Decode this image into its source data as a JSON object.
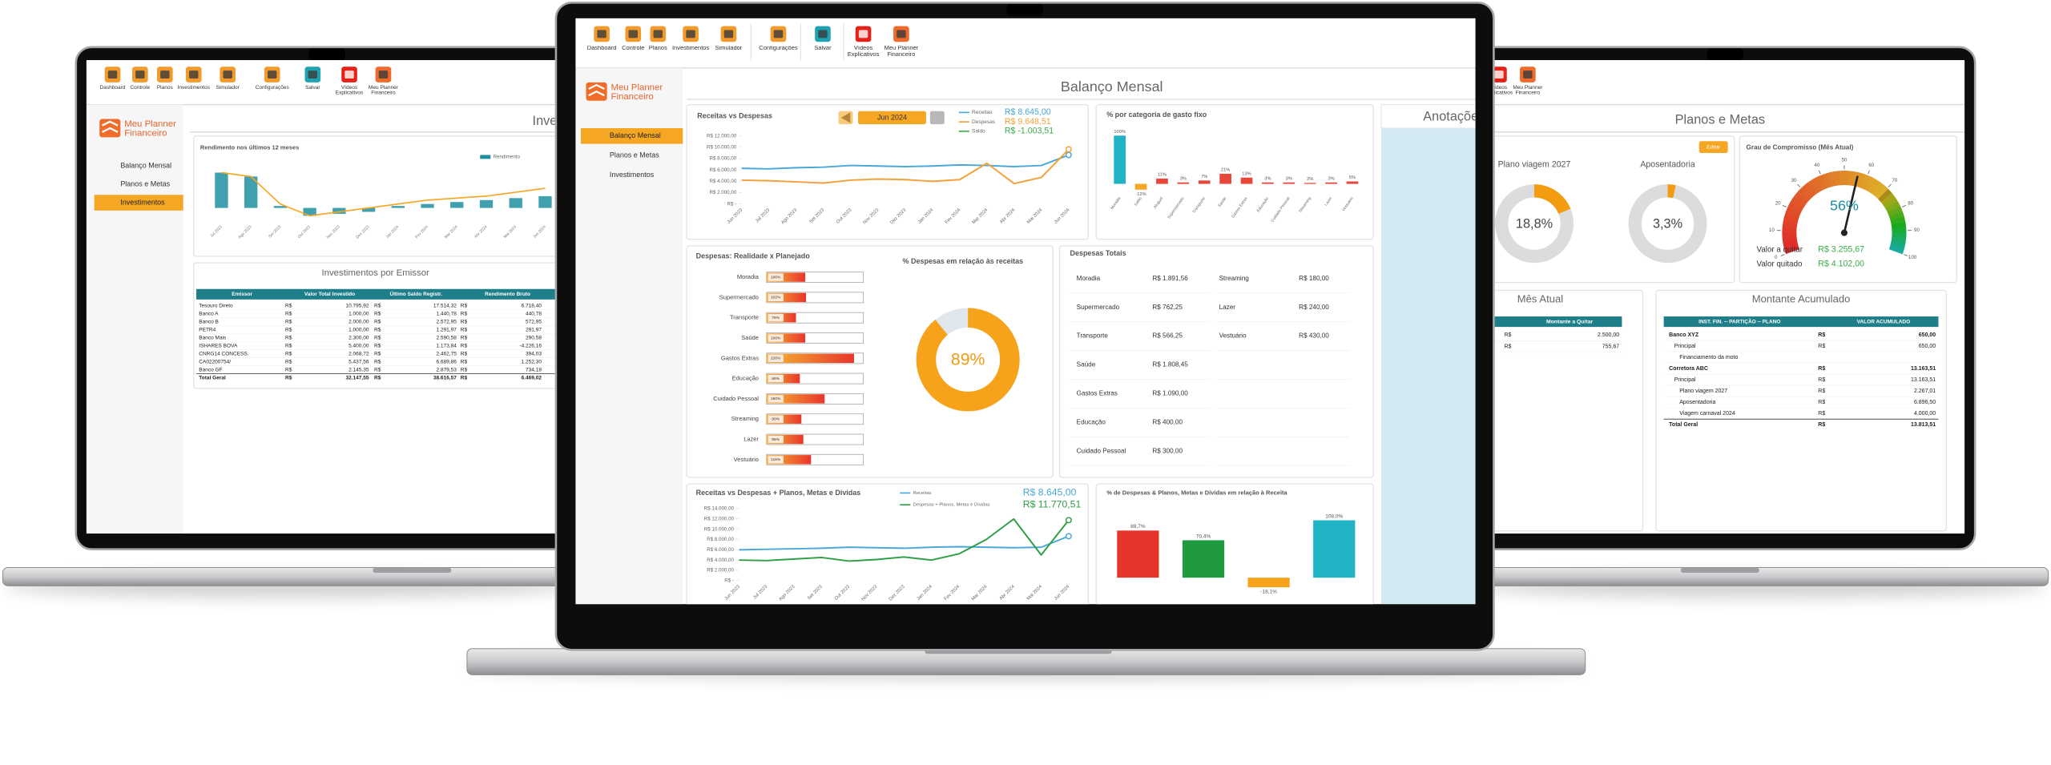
{
  "toolbar": [
    "Dashboard",
    "Controle",
    "Planos",
    "Investimentos",
    "Simulador",
    "Configurações",
    "Salvar",
    "Vídeos Explicativos",
    "Meu Planner Financeiro"
  ],
  "logo": [
    "Meu Planner",
    "Financeiro"
  ],
  "menu": [
    "Balanço Mensal",
    "Planos e Metas",
    "Investimentos"
  ],
  "center": {
    "title": "Balanço Mensal",
    "notes": "Anotações"
  },
  "totals": {
    "title": "Despesas Totais",
    "left": [
      [
        "Moradia",
        "R$ 1.891,56"
      ],
      [
        "Supermercado",
        "R$ 762,25"
      ],
      [
        "Transporte",
        "R$ 566,25"
      ],
      [
        "Saúde",
        "R$ 1.808,45"
      ],
      [
        "Gastos Extras",
        "R$ 1.090,00"
      ],
      [
        "Educação",
        "R$ 400,00"
      ],
      [
        "Cuidado Pessoal",
        "R$ 300,00"
      ]
    ],
    "right": [
      [
        "Streaming",
        "R$ 180,00"
      ],
      [
        "Lazer",
        "R$ 240,00"
      ],
      [
        "Vestuário",
        "R$ 430,00"
      ]
    ]
  },
  "left": {
    "title": "Investimentos",
    "table": {
      "title": "Investimentos por Emissor",
      "header": [
        "Emissor",
        "Valor Total Investido",
        "Último Saldo Registr.",
        "Rendimento Bruto"
      ],
      "rows": [
        [
          "Tesouro Direto",
          "R$",
          "10.795,92",
          "R$",
          "17.514,32",
          "R$",
          "6.718,40"
        ],
        [
          "Banco A",
          "R$",
          "1.000,00",
          "R$",
          "1.440,78",
          "R$",
          "440,78"
        ],
        [
          "Banco B",
          "R$",
          "2.000,00",
          "R$",
          "2.572,95",
          "R$",
          "572,95"
        ],
        [
          "PETR4",
          "R$",
          "1.000,00",
          "R$",
          "1.291,97",
          "R$",
          "291,97"
        ],
        [
          "Banco Mais",
          "R$",
          "2.300,00",
          "R$",
          "2.590,58",
          "R$",
          "290,58"
        ],
        [
          "ISHARES BOVA",
          "R$",
          "5.400,00",
          "R$",
          "1.173,84",
          "R$",
          "-4.226,16"
        ],
        [
          "CNRG14 CONCESS.",
          "R$",
          "2.068,72",
          "R$",
          "2.462,75",
          "R$",
          "394,03"
        ],
        [
          "CA02200754/",
          "R$",
          "5.437,56",
          "R$",
          "6.689,86",
          "R$",
          "1.252,30"
        ],
        [
          "Banco GF",
          "R$",
          "2.145,35",
          "R$",
          "2.879,53",
          "R$",
          "734,18"
        ],
        [
          "Total Geral",
          "R$",
          "32.147,55",
          "R$",
          "38.616,57",
          "R$",
          "6.469,02"
        ]
      ]
    }
  },
  "right": {
    "title": "Planos e Metas",
    "button": "Editar",
    "details": [
      [
        "Valor a quitar",
        "R$ 3.255,67"
      ],
      [
        "Valor quitado",
        "R$ 4.102,00"
      ]
    ],
    "debts": {
      "title": "Mês Atual",
      "header": "Montante a Quitar",
      "rows": [
        [
          "R$",
          "2.500,00"
        ],
        [
          "R$",
          "755,67"
        ]
      ]
    },
    "accumulated": {
      "title": "Montante Acumulado",
      "header": [
        "INST. FIN. -- PARTIÇÃO -- PLANO",
        "VALOR ACUMULADO"
      ],
      "rows": [
        [
          "Banco XYZ",
          "R$",
          "650,00"
        ],
        [
          "Principal",
          "R$",
          "650,00"
        ],
        [
          "Financiamento da moto"
        ],
        [
          "Corretora ABC",
          "R$",
          "13.163,51"
        ],
        [
          "Principal",
          "R$",
          "13.163,51"
        ],
        [
          "Plano viagem 2027",
          "R$",
          "2.267,01"
        ],
        [
          "Aposentadoria",
          "R$",
          "6.896,50"
        ],
        [
          "Viagem carnaval 2024",
          "R$",
          "4.000,00"
        ],
        [
          "Total Geral",
          "R$",
          "13.813,51"
        ]
      ]
    }
  },
  "chart_data": [
    {
      "type": "line",
      "title": "Receitas vs Despesas",
      "period": "Jun 2024",
      "categories": [
        "Jun 2023",
        "Jul 2023",
        "Ago 2023",
        "Set 2023",
        "Out 2023",
        "Nov 2023",
        "Dez 2023",
        "Jan 2024",
        "Fev 2024",
        "Mar 2024",
        "Abr 2024",
        "Mai 2024",
        "Jun 2024"
      ],
      "series": [
        {
          "name": "Receitas",
          "total": "R$ 8.645,00",
          "color": "#4aa8d8",
          "values": [
            6300,
            6200,
            6400,
            6500,
            6800,
            6700,
            6600,
            6700,
            6900,
            6800,
            6600,
            6800,
            8645
          ]
        },
        {
          "name": "Despesas",
          "total": "R$ 9.648,51",
          "color": "#f5a13a",
          "values": [
            4200,
            4100,
            3900,
            3700,
            4200,
            4400,
            4300,
            4000,
            4300,
            7200,
            3600,
            4700,
            9648.51
          ]
        }
      ],
      "summary": {
        "name": "Saldo",
        "total": "R$ -1.003,51",
        "color": "#3cae4a"
      },
      "ylim": [
        0,
        12000
      ],
      "yticks": [
        {
          "value": 0,
          "label": "R$ -"
        },
        {
          "value": 2000,
          "label": "R$ 2.000,00"
        },
        {
          "value": 4000,
          "label": "R$ 4.000,00"
        },
        {
          "value": 6000,
          "label": "R$ 6.000,00"
        },
        {
          "value": 8000,
          "label": "R$ 8.000,00"
        },
        {
          "value": 10000,
          "label": "R$ 10.000,00"
        },
        {
          "value": 12000,
          "label": "R$ 12.000,00"
        }
      ],
      "grid": false
    },
    {
      "type": "bar",
      "title": "% por categoria de gasto fixo",
      "categories": [
        "Moradia",
        "Saldo",
        "Aluguel",
        "Supermercado",
        "Transporte",
        "Saúde",
        "Gastos Extras",
        "Educação",
        "Cuidado Pessoal",
        "Streaming",
        "Lazer",
        "Vestuário"
      ],
      "values": [
        100,
        -12,
        11,
        3,
        7,
        21,
        13,
        3,
        3,
        2,
        3,
        5
      ],
      "value_labels": [
        "100%",
        "-12%",
        "11%",
        "3%",
        "7%",
        "21%",
        "13%",
        "3%",
        "3%",
        "2%",
        "3%",
        "5%"
      ],
      "colors": [
        "#1fb3c4",
        "#f5a623",
        "#e8463a",
        "#e8463a",
        "#e8463a",
        "#e8463a",
        "#e8463a",
        "#e8463a",
        "#e8463a",
        "#e8463a",
        "#e8463a",
        "#e8463a"
      ],
      "ylim": [
        -20,
        110
      ]
    },
    {
      "type": "hbar",
      "title": "Despesas: Realidade x Planejado",
      "categories": [
        "Moradia",
        "Supermercado",
        "Transporte",
        "Saúde",
        "Gastos Extras",
        "Educação",
        "Cuidado Pessoal",
        "Streaming",
        "Lazer",
        "Vestuário"
      ],
      "values": [
        100,
        102,
        76,
        100,
        226,
        86,
        150,
        90,
        95,
        115
      ],
      "value_labels": [
        "100%",
        "102%",
        "76%",
        "100%",
        "226%",
        "86%",
        "150%",
        "90%",
        "95%",
        "115%"
      ],
      "xlim": [
        0,
        250
      ],
      "color": "#f0642c"
    },
    {
      "type": "donut",
      "title": "% Despesas em relação às receitas",
      "values": [
        89
      ],
      "value_labels": [
        "89%"
      ],
      "color": "#f7a21b"
    },
    {
      "type": "line",
      "title": "Receitas vs Despesas + Planos, Metas e Dívidas",
      "categories": [
        "Jun 2023",
        "Jul 2023",
        "Ago 2023",
        "Set 2023",
        "Out 2023",
        "Nov 2023",
        "Dez 2023",
        "Jan 2024",
        "Fev 2024",
        "Mar 2024",
        "Abr 2024",
        "Mai 2024",
        "Jun 2024"
      ],
      "series": [
        {
          "name": "Receitas",
          "total": "R$ 8.645,00",
          "color": "#4aa8d8",
          "values": [
            6000,
            6100,
            6200,
            6300,
            6500,
            6400,
            6300,
            6500,
            6600,
            6500,
            6400,
            6500,
            8645
          ]
        },
        {
          "name": "Despesas + Planos, Metas e Dívidas",
          "total": "R$ 11.770,51",
          "color": "#2e9e44",
          "values": [
            4000,
            3900,
            4200,
            4500,
            3800,
            4100,
            4600,
            4000,
            5200,
            8000,
            12000,
            5000,
            11770.51
          ]
        }
      ],
      "ylim": [
        0,
        14000
      ],
      "yticks": [
        {
          "value": 0,
          "label": "R$ -"
        },
        {
          "value": 2000,
          "label": "R$ 2.000,00"
        },
        {
          "value": 4000,
          "label": "R$ 4.000,00"
        },
        {
          "value": 6000,
          "label": "R$ 6.000,00"
        },
        {
          "value": 8000,
          "label": "R$ 8.000,00"
        },
        {
          "value": 10000,
          "label": "R$ 10.000,00"
        },
        {
          "value": 12000,
          "label": "R$ 12.000,00"
        },
        {
          "value": 14000,
          "label": "R$ 14.000,00"
        }
      ],
      "grid": false
    },
    {
      "type": "bar",
      "title": "% de Despesas & Planos, Metas e Dívidas em relação à Receita",
      "values": [
        88.7,
        70.4,
        -18.1,
        108.0
      ],
      "value_labels": [
        "88,7%",
        "70,4%",
        "-18,1%",
        "108,0%"
      ],
      "colors": [
        "#e8352b",
        "#1f9a3f",
        "#f7a21b",
        "#1fb3c4"
      ],
      "ylim": [
        -40,
        120
      ]
    },
    {
      "type": "combo",
      "title": "Rendimento nos últimos 12 meses",
      "categories": [
        "Jul 2023",
        "Ago 2023",
        "Set 2023",
        "Out 2023",
        "Nov 2023",
        "Dez 2023",
        "Jan 2024",
        "Fev 2024",
        "Mar 2024",
        "Abr 2024",
        "Mai 2024",
        "Jun 2024"
      ],
      "series": [
        {
          "name": "Rendimento",
          "color": "#1e8fa0",
          "values": [
            18,
            16,
            1,
            -4,
            -3,
            -2,
            1,
            2,
            3,
            4,
            5,
            6
          ]
        },
        {
          "color": "#f5a623",
          "values": [
            18,
            16,
            2,
            -4,
            -2,
            0,
            2,
            4,
            5,
            6,
            8,
            10
          ]
        }
      ],
      "ylim": [
        -6,
        22
      ]
    },
    {
      "type": "donut",
      "categories": [
        "Plano viagem 2027",
        "Aposentadoria"
      ],
      "values": [
        18.8,
        3.3
      ],
      "value_labels": [
        "18,8%",
        "3,3%"
      ],
      "color": "#f39c12"
    },
    {
      "type": "gauge",
      "title": "Grau de Compromisso (Mês Atual)",
      "value": 56,
      "value_label": "56%",
      "ylim": [
        0,
        100
      ],
      "yticks": [
        0,
        10,
        20,
        30,
        40,
        50,
        60,
        70,
        80,
        90,
        100
      ]
    }
  ]
}
